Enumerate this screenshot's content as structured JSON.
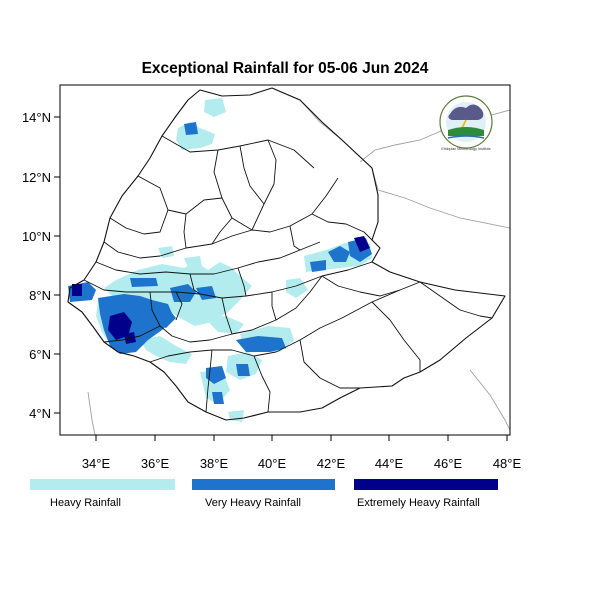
{
  "title": "Exceptional Rainfall for 05-06 Jun 2024",
  "axes": {
    "x_ticks": [
      "34°E",
      "36°E",
      "38°E",
      "40°E",
      "42°E",
      "44°E",
      "46°E",
      "48°E"
    ],
    "y_ticks": [
      "14°N",
      "12°N",
      "10°N",
      "8°N",
      "6°N",
      "4°N"
    ],
    "lon_range": [
      33,
      48
    ],
    "lat_range": [
      3.2,
      15
    ]
  },
  "legend": [
    {
      "label": "Heavy Rainfall",
      "color": "#b3ecee"
    },
    {
      "label": "Very Heavy Rainfall",
      "color": "#1e74cc"
    },
    {
      "label": "Extremely Heavy Rainfall",
      "color": "#00008b"
    }
  ],
  "logo": {
    "text": "Ethiopian Meteorology Institute",
    "icon": "meteorology-institute-logo"
  },
  "colors": {
    "heavy": "#b3ecee",
    "very_heavy": "#1e74cc",
    "extreme": "#00008b",
    "boundary": "#111111",
    "background_boundary": "#a0a0a0"
  }
}
